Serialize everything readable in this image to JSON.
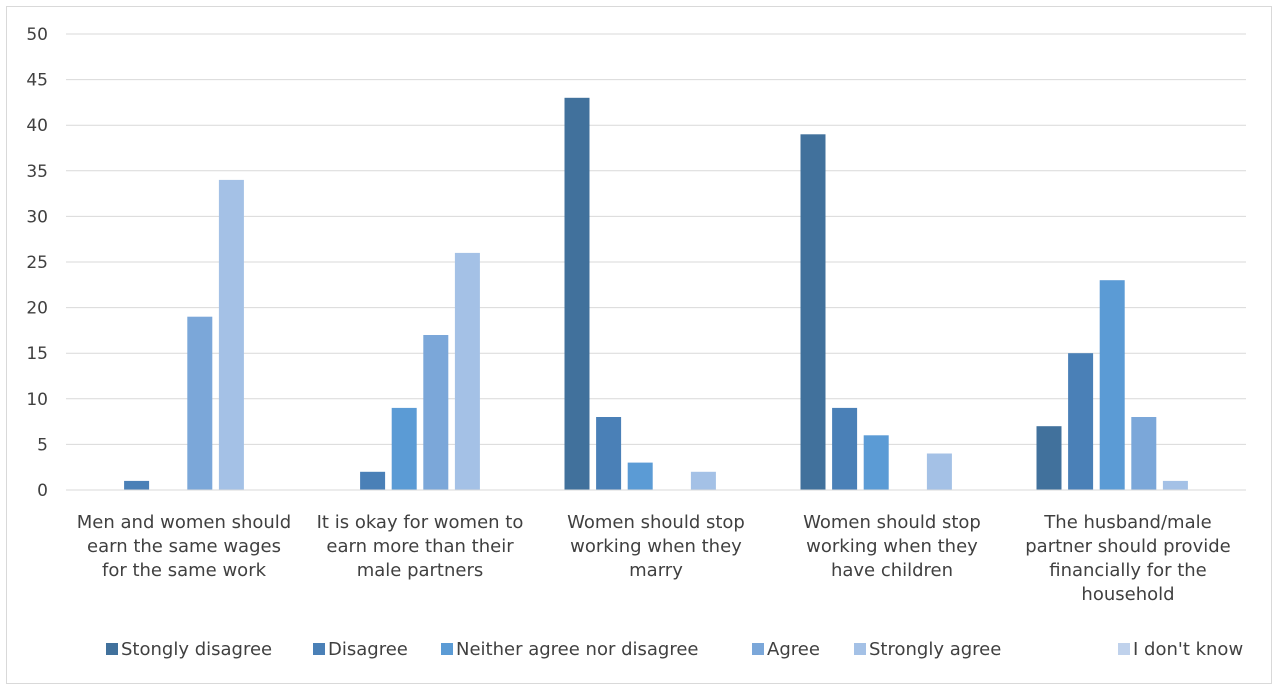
{
  "chart_data": {
    "type": "bar",
    "title": "",
    "xlabel": "",
    "ylabel": "",
    "ylim": [
      0,
      50
    ],
    "yticks": [
      0,
      5,
      10,
      15,
      20,
      25,
      30,
      35,
      40,
      45,
      50
    ],
    "grid": true,
    "legend_position": "bottom",
    "categories": [
      [
        "Men and women should",
        "earn the same wages",
        "for the same work"
      ],
      [
        "It is okay for women to",
        "earn more than their",
        "male partners"
      ],
      [
        "Women should stop",
        "working when they",
        "marry"
      ],
      [
        "Women should stop",
        "working when they",
        "have children"
      ],
      [
        "The husband/male",
        "partner should provide",
        "financially for the",
        "household"
      ]
    ],
    "series": [
      {
        "name": "Stongly disagree",
        "color": "#41719c",
        "values": [
          0,
          0,
          43,
          39,
          7
        ]
      },
      {
        "name": "Disagree",
        "color": "#4a80b7",
        "values": [
          1,
          2,
          8,
          9,
          15
        ]
      },
      {
        "name": "Neither agree nor disagree",
        "color": "#5b9bd5",
        "values": [
          0,
          9,
          3,
          6,
          23
        ]
      },
      {
        "name": "Agree",
        "color": "#7ba7d9",
        "values": [
          19,
          17,
          0,
          0,
          8
        ]
      },
      {
        "name": "Strongly agree",
        "color": "#a4c1e6",
        "values": [
          34,
          26,
          2,
          4,
          1
        ]
      },
      {
        "name": "I don't know",
        "color": "#c0d2ec",
        "values": [
          0,
          0,
          0,
          0,
          0
        ]
      }
    ]
  }
}
